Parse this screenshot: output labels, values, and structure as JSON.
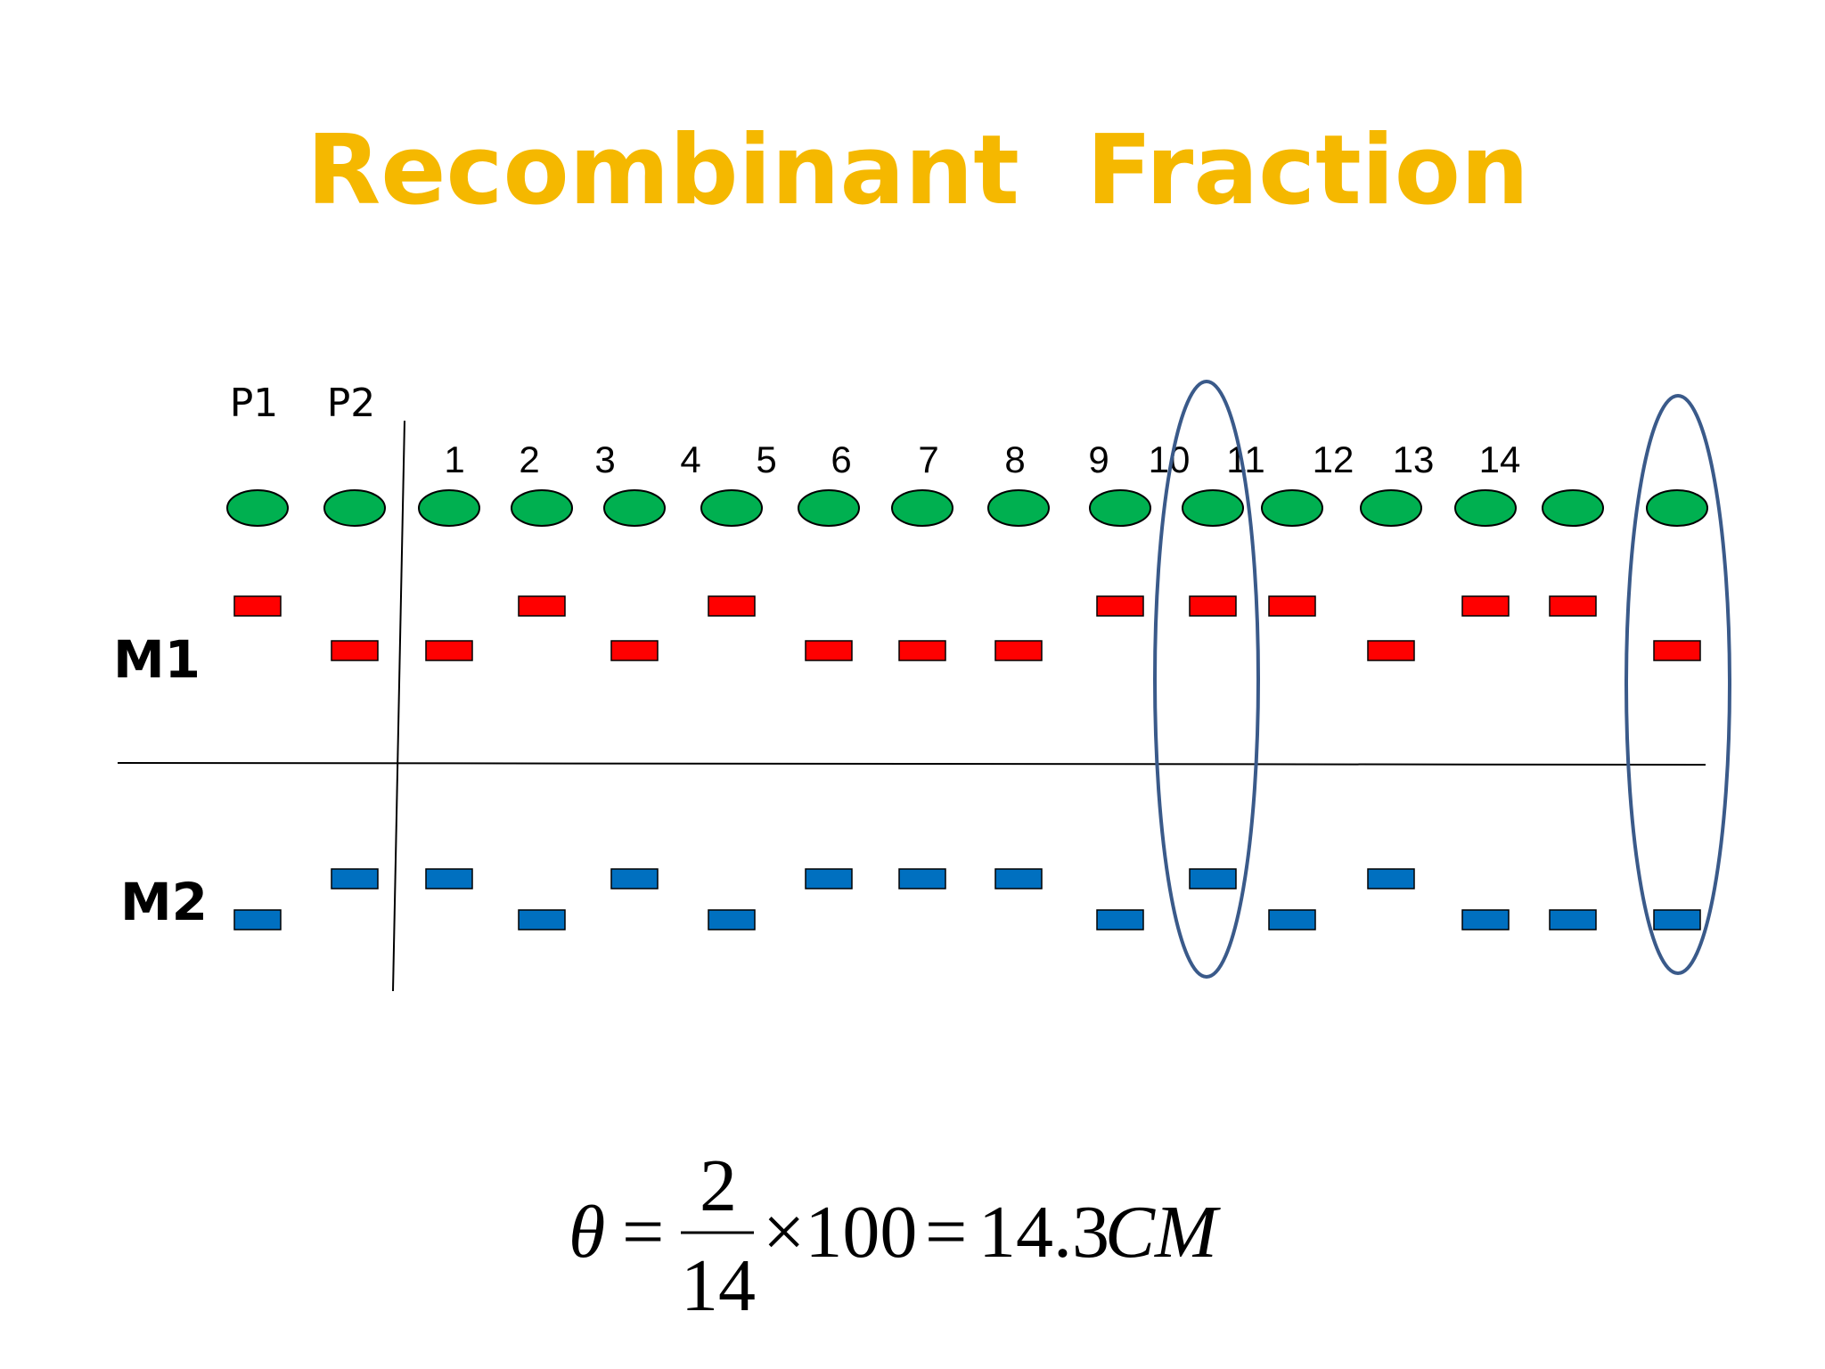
{
  "title": "Recombinant  Fraction",
  "parents": [
    "P1",
    "P2"
  ],
  "offspring_numbers": [
    "1",
    "2",
    "3",
    "4",
    "5",
    "6",
    "7",
    "8",
    "9",
    "10",
    "11",
    "12",
    "13",
    "14"
  ],
  "markers": {
    "m1_label": "M1",
    "m2_label": "M2"
  },
  "colors": {
    "title": "#f5b800",
    "individual": "#00b050",
    "m1_band": "#ff0000",
    "m2_band": "#0070c0",
    "highlight_ellipse": "#3a5a8a"
  },
  "genotypes": {
    "m1_row": [
      "top",
      "bottom",
      "bottom",
      "top",
      "bottom",
      "top",
      "bottom",
      "bottom",
      "bottom",
      "top",
      "top",
      "top",
      "bottom",
      "top",
      "top",
      "bottom"
    ],
    "m2_row": [
      "bottom",
      "top",
      "top",
      "bottom",
      "top",
      "bottom",
      "top",
      "top",
      "top",
      "bottom",
      "top",
      "bottom",
      "top",
      "bottom",
      "bottom",
      "bottom"
    ]
  },
  "highlighted_lanes": [
    10,
    15
  ],
  "formula": {
    "symbol": "θ",
    "equals1": "=",
    "numerator": "2",
    "denominator": "14",
    "times": "×100",
    "equals2": "=",
    "result": "14.3",
    "unit": "CM"
  }
}
